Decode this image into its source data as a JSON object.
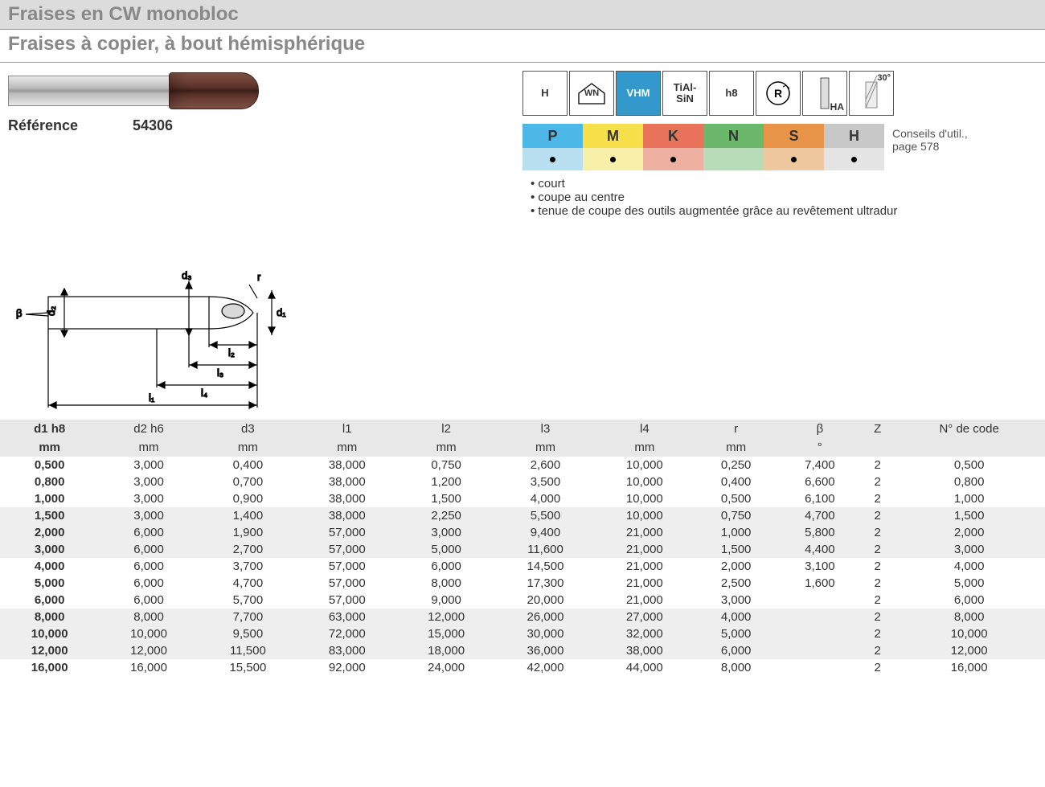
{
  "header": {
    "title": "Fraises en CW monobloc",
    "subtitle": "Fraises à copier, à bout hémisphérique"
  },
  "reference": {
    "label": "Référence",
    "value": "54306"
  },
  "icons": [
    {
      "id": "H",
      "label": "H",
      "style": "plain"
    },
    {
      "id": "WN",
      "label": "WN",
      "style": "house"
    },
    {
      "id": "VHM",
      "label": "VHM",
      "style": "vhm"
    },
    {
      "id": "TiAlSiN",
      "label": "TiAl-\nSiN",
      "style": "plain"
    },
    {
      "id": "h8",
      "label": "h8",
      "style": "plain"
    },
    {
      "id": "R",
      "label": "R",
      "style": "circle"
    },
    {
      "id": "HA",
      "label": "HA",
      "style": "shank"
    },
    {
      "id": "30",
      "label": "30°",
      "style": "helix"
    }
  ],
  "materials": {
    "cells": [
      {
        "code": "P",
        "color": "#4db8e8",
        "dot": true,
        "dotbg": "#b8e0f0"
      },
      {
        "code": "M",
        "color": "#f7e04a",
        "dot": true,
        "dotbg": "#f8efa8"
      },
      {
        "code": "K",
        "color": "#e8725a",
        "dot": true,
        "dotbg": "#eeb0a0"
      },
      {
        "code": "N",
        "color": "#6bb86b",
        "dot": false,
        "dotbg": "#b8dcb8"
      },
      {
        "code": "S",
        "color": "#e8954a",
        "dot": true,
        "dotbg": "#f0c8a0"
      },
      {
        "code": "H",
        "color": "#c8c8c8",
        "dot": true,
        "dotbg": "#e4e4e4"
      }
    ],
    "advice": "Conseils d'util., page 578"
  },
  "bullets": [
    "court",
    "coupe au centre",
    "tenue de coupe des outils augmentée grâce au revêtement ultradur"
  ],
  "diagram_labels": [
    "d1",
    "d2",
    "d3",
    "l1",
    "l2",
    "l3",
    "l4",
    "r",
    "β"
  ],
  "table": {
    "head1": [
      "d1 h8",
      "d2 h6",
      "d3",
      "l1",
      "l2",
      "l3",
      "l4",
      "r",
      "β",
      "Z",
      "N° de code"
    ],
    "head2": [
      "mm",
      "mm",
      "mm",
      "mm",
      "mm",
      "mm",
      "mm",
      "mm",
      "°",
      "",
      ""
    ],
    "groups": [
      [
        [
          "0,500",
          "3,000",
          "0,400",
          "38,000",
          "0,750",
          "2,600",
          "10,000",
          "0,250",
          "7,400",
          "2",
          "0,500"
        ],
        [
          "0,800",
          "3,000",
          "0,700",
          "38,000",
          "1,200",
          "3,500",
          "10,000",
          "0,400",
          "6,600",
          "2",
          "0,800"
        ],
        [
          "1,000",
          "3,000",
          "0,900",
          "38,000",
          "1,500",
          "4,000",
          "10,000",
          "0,500",
          "6,100",
          "2",
          "1,000"
        ]
      ],
      [
        [
          "1,500",
          "3,000",
          "1,400",
          "38,000",
          "2,250",
          "5,500",
          "10,000",
          "0,750",
          "4,700",
          "2",
          "1,500"
        ],
        [
          "2,000",
          "6,000",
          "1,900",
          "57,000",
          "3,000",
          "9,400",
          "21,000",
          "1,000",
          "5,800",
          "2",
          "2,000"
        ],
        [
          "3,000",
          "6,000",
          "2,700",
          "57,000",
          "5,000",
          "11,600",
          "21,000",
          "1,500",
          "4,400",
          "2",
          "3,000"
        ]
      ],
      [
        [
          "4,000",
          "6,000",
          "3,700",
          "57,000",
          "6,000",
          "14,500",
          "21,000",
          "2,000",
          "3,100",
          "2",
          "4,000"
        ],
        [
          "5,000",
          "6,000",
          "4,700",
          "57,000",
          "8,000",
          "17,300",
          "21,000",
          "2,500",
          "1,600",
          "2",
          "5,000"
        ],
        [
          "6,000",
          "6,000",
          "5,700",
          "57,000",
          "9,000",
          "20,000",
          "21,000",
          "3,000",
          "",
          "2",
          "6,000"
        ]
      ],
      [
        [
          "8,000",
          "8,000",
          "7,700",
          "63,000",
          "12,000",
          "26,000",
          "27,000",
          "4,000",
          "",
          "2",
          "8,000"
        ],
        [
          "10,000",
          "10,000",
          "9,500",
          "72,000",
          "15,000",
          "30,000",
          "32,000",
          "5,000",
          "",
          "2",
          "10,000"
        ],
        [
          "12,000",
          "12,000",
          "11,500",
          "83,000",
          "18,000",
          "36,000",
          "38,000",
          "6,000",
          "",
          "2",
          "12,000"
        ]
      ],
      [
        [
          "16,000",
          "16,000",
          "15,500",
          "92,000",
          "24,000",
          "42,000",
          "44,000",
          "8,000",
          "",
          "2",
          "16,000"
        ]
      ]
    ]
  }
}
